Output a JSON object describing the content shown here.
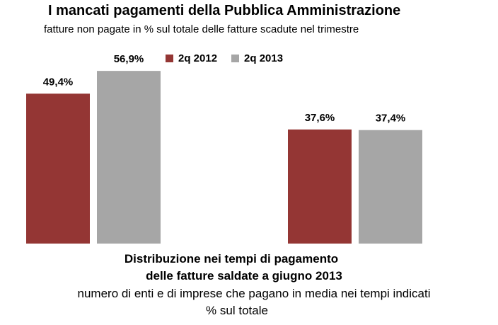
{
  "colors": {
    "series_2012": "#943634",
    "series_2013": "#a6a6a6",
    "text": "#000000"
  },
  "chart_data": {
    "type": "bar",
    "title": "I mancati pagamenti della Pubblica Amministrazione",
    "subtitle": "fatture non pagate in % sul totale delle fatture scadute nel trimestre",
    "categories": [
      "",
      ""
    ],
    "series": [
      {
        "name": "2q 2012",
        "values": [
          49.4,
          37.6
        ],
        "labels": [
          "49,4%",
          "37,6%"
        ]
      },
      {
        "name": "2q 2013",
        "values": [
          56.9,
          37.4
        ],
        "labels": [
          "56,9%",
          "37,4%"
        ]
      }
    ],
    "ylim": [
      0,
      70
    ],
    "grid": false,
    "legend": "top-center"
  },
  "footer": {
    "line1": "Distribuzione nei tempi di pagamento",
    "line2": "delle fatture saldate a giugno 2013",
    "line3": "numero di enti e di imprese che pagano in media nei tempi indicati",
    "line4": "% sul totale"
  }
}
